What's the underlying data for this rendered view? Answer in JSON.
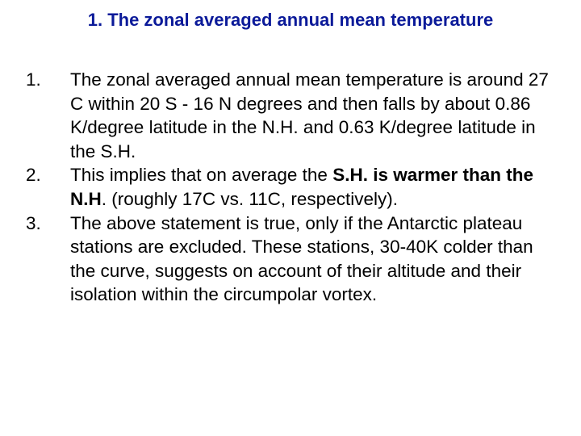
{
  "slide": {
    "title": "1. The zonal averaged annual mean temperature",
    "items": [
      {
        "number": "1.",
        "text": "The zonal averaged annual mean temperature is around 27 C within 20 S - 16 N degrees and then falls by about 0.86 K/degree latitude in the N.H. and 0.63 K/degree latitude in the S.H."
      },
      {
        "number": "2.",
        "text_before": "This implies that on average the ",
        "bold_1": "S.H. is warmer than the N.H",
        "text_after": ". (roughly 17C vs. 11C, respectively)."
      },
      {
        "number": "3.",
        "text": "The above statement is true, only if the Antarctic plateau stations are excluded. These stations, 30-40K colder than the curve, suggests on account of their altitude and their isolation within the circumpolar vortex."
      }
    ]
  },
  "colors": {
    "title": "#0b1a99",
    "body_text": "#000000",
    "background": "#ffffff"
  }
}
